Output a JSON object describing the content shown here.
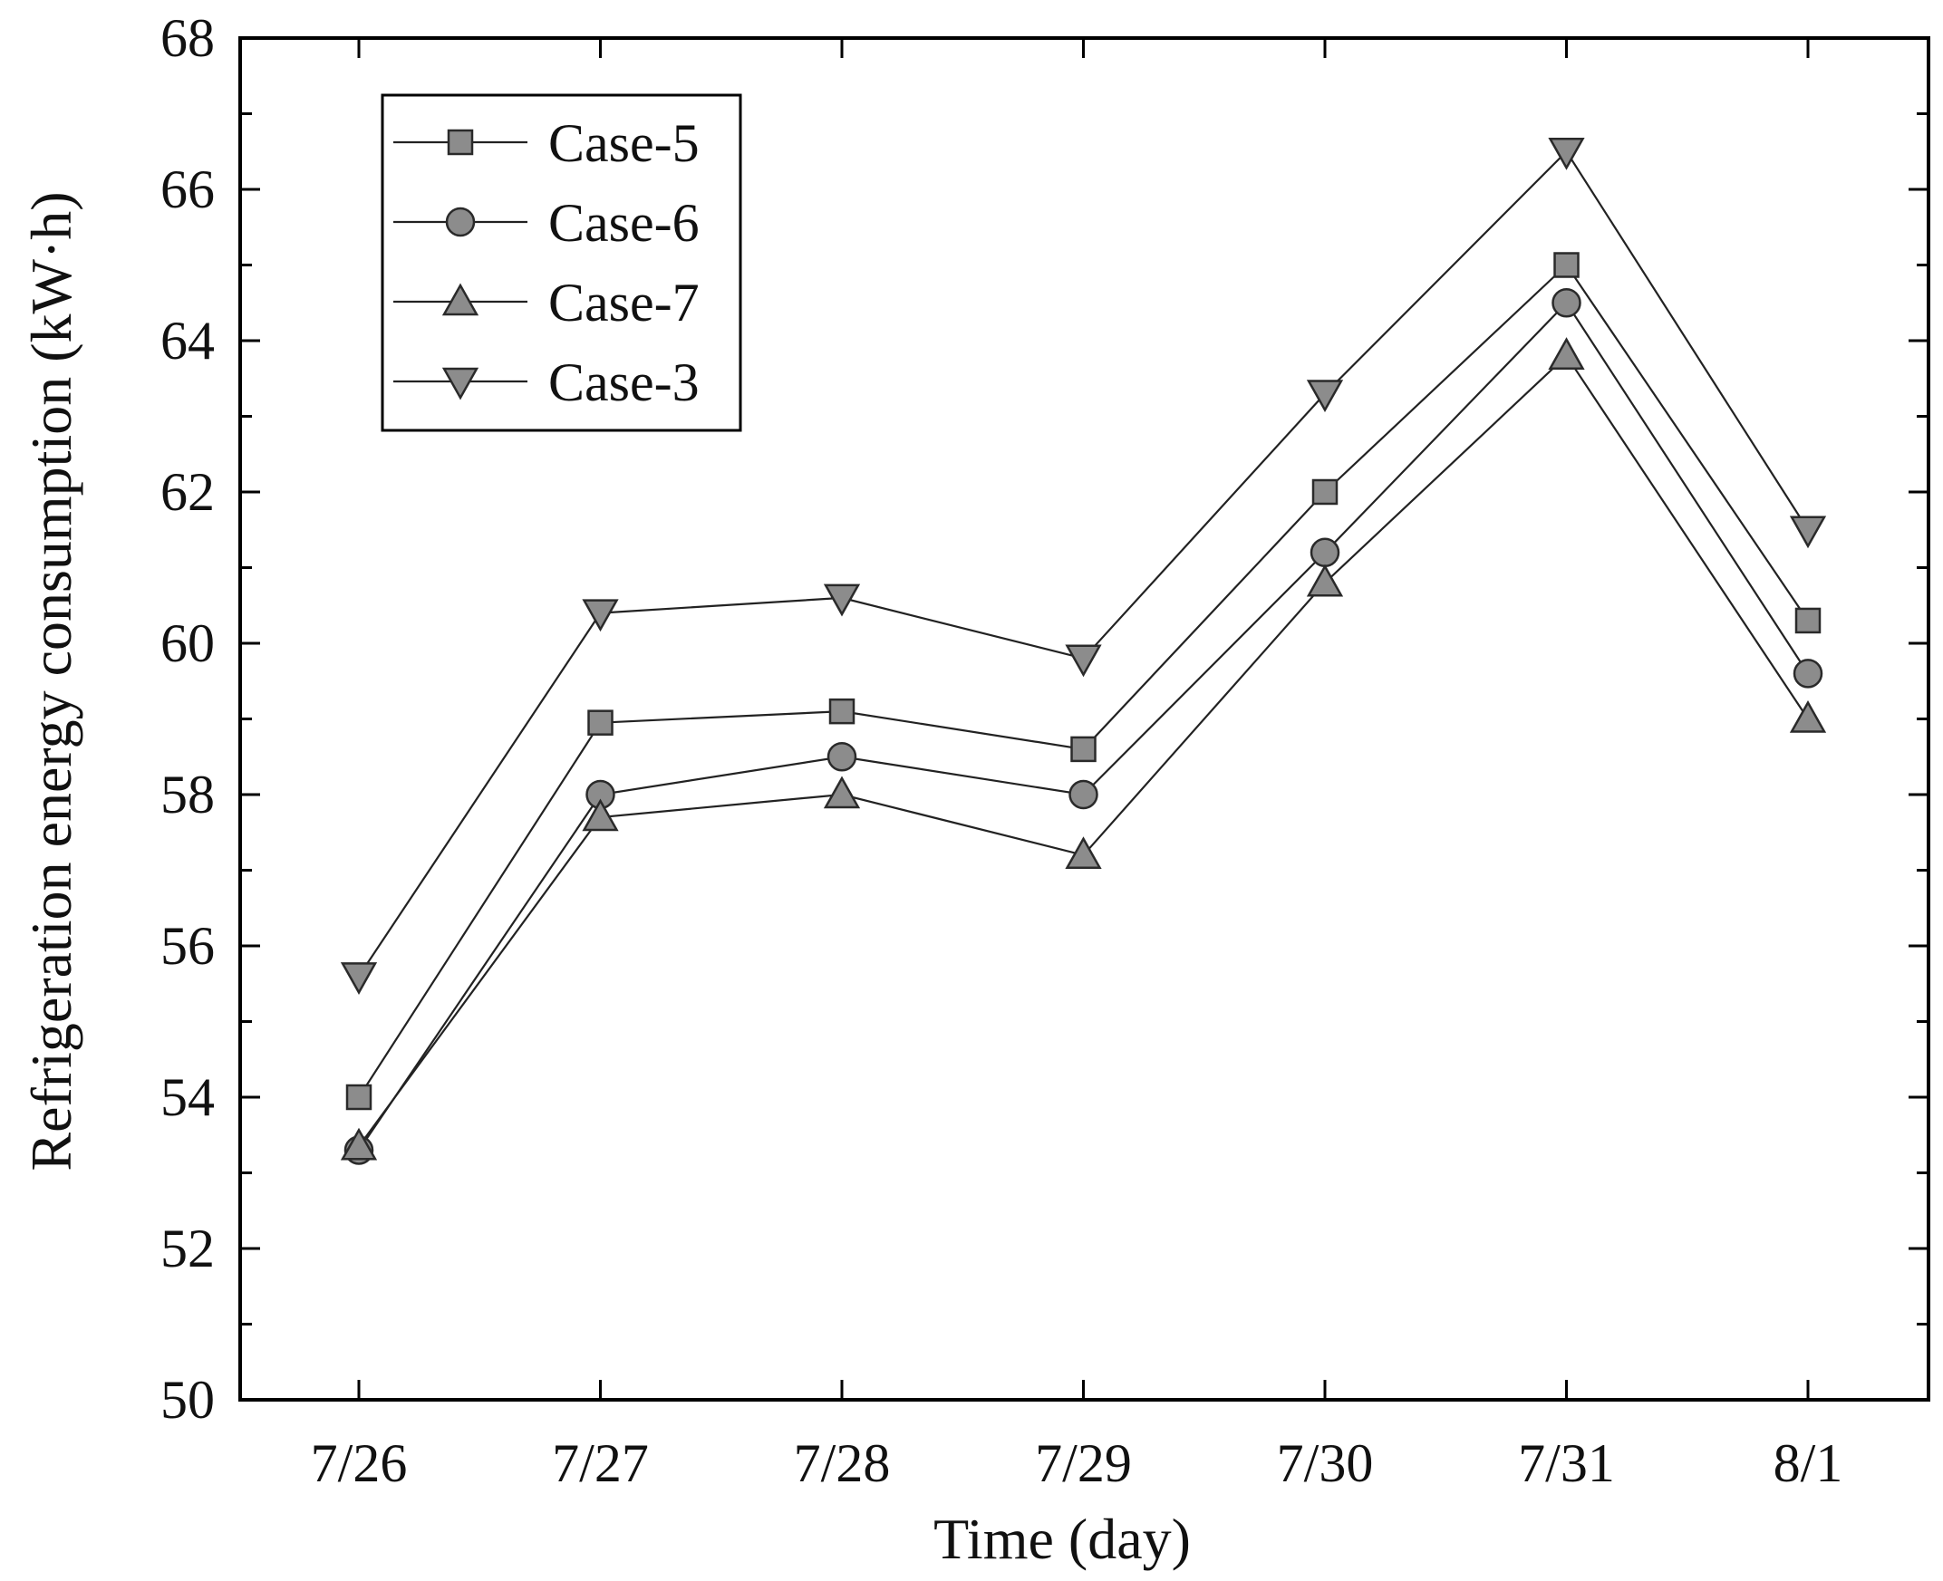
{
  "chart_data": {
    "type": "line",
    "title": "",
    "xlabel": "Time (day)",
    "ylabel": "Refrigeration energy consumption (kW·h)",
    "categories": [
      "7/26",
      "7/27",
      "7/28",
      "7/29",
      "7/30",
      "7/31",
      "8/1"
    ],
    "ylim": [
      50,
      68
    ],
    "yticks": [
      50,
      52,
      54,
      56,
      58,
      60,
      62,
      64,
      66,
      68
    ],
    "legend_position": "top-left",
    "grid": false,
    "series": [
      {
        "name": "Case-5",
        "marker": "square",
        "values": [
          54.0,
          58.95,
          59.1,
          58.6,
          62.0,
          65.0,
          60.3
        ]
      },
      {
        "name": "Case-6",
        "marker": "circle",
        "values": [
          53.3,
          58.0,
          58.5,
          58.0,
          61.2,
          64.5,
          59.6
        ]
      },
      {
        "name": "Case-7",
        "marker": "triangle-up",
        "values": [
          53.35,
          57.7,
          58.0,
          57.2,
          60.8,
          63.8,
          59.0
        ]
      },
      {
        "name": "Case-3",
        "marker": "triangle-down",
        "values": [
          55.6,
          60.4,
          60.6,
          59.8,
          63.3,
          66.5,
          61.5
        ]
      }
    ],
    "colors": {
      "marker_fill": "#8c8c8c",
      "line": "#222222",
      "axis": "#000000"
    }
  }
}
